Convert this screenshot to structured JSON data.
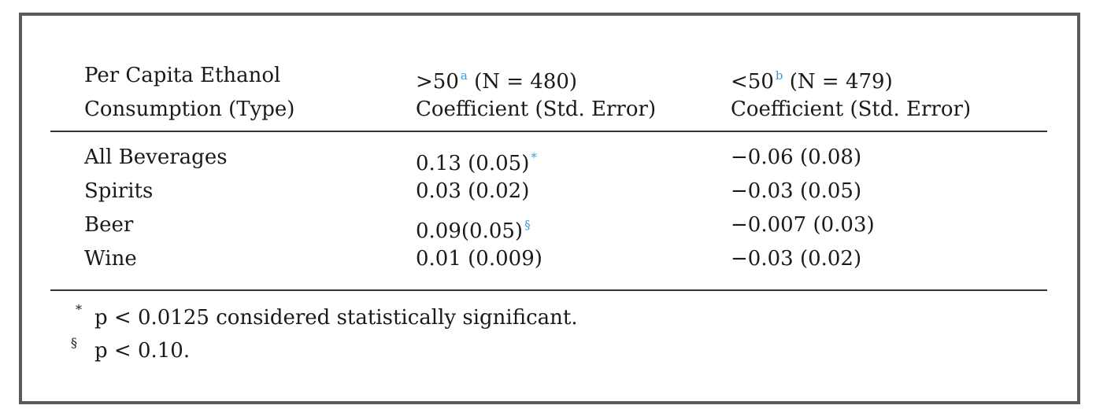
{
  "table": {
    "header": {
      "first": [
        "Per Capita Ethanol",
        "Consumption (Type)"
      ],
      "columns": [
        {
          "label": ">50",
          "sup": "a",
          "n": "(N = 480)",
          "sub": "Coefficient (Std. Error)"
        },
        {
          "label": "<50",
          "sup": "b",
          "n": "(N = 479)",
          "sub": "Coefficient (Std. Error)"
        }
      ]
    },
    "rows": [
      {
        "label": "All Beverages",
        "cells": [
          {
            "text": "0.13 (0.05)",
            "sup": "*"
          },
          {
            "text": "−0.06 (0.08)"
          }
        ]
      },
      {
        "label": "Spirits",
        "cells": [
          {
            "text": "0.03 (0.02)"
          },
          {
            "text": "−0.03 (0.05)"
          }
        ]
      },
      {
        "label": "Beer",
        "cells": [
          {
            "text": "0.09(0.05)",
            "sup": "§"
          },
          {
            "text": "−0.007 (0.03)"
          }
        ]
      },
      {
        "label": "Wine",
        "cells": [
          {
            "text": "0.01 (0.009)"
          },
          {
            "text": "−0.03 (0.02)"
          }
        ]
      }
    ],
    "footnotes": [
      {
        "mark": "*",
        "text": "p < 0.0125 considered statistically significant."
      },
      {
        "mark": "§",
        "text": "p < 0.10."
      }
    ]
  }
}
